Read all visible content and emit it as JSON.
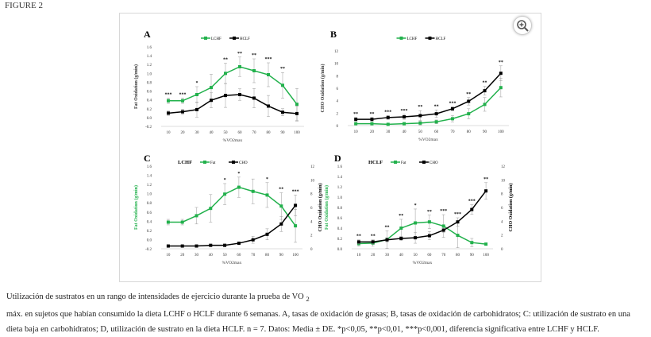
{
  "figure_label": "FIGURE 2",
  "zoom_icon": "zoom-in-icon",
  "caption_pre": "Utilización de sustratos en un rango de intensidades de ejercicio durante la prueba de VO ",
  "caption_sub": "2",
  "caption_post": " máx. en sujetos que habían consumido la dieta LCHF o HCLF durante 6 semanas. A, tasas de oxidación de grasas; B, tasas de oxidación de carbohidratos; C: utilización de sustrato en una dieta baja en carbohidratos; D, utilización de sustrato en la dieta HCLF. n = 7. Datos: Media ± DE. *p<0,05, **p<0,01, ***p<0,001, diferencia significativa entre LCHF y HCLF.",
  "colors": {
    "green": "#22b14c",
    "black": "#000000"
  },
  "chart_data": [
    {
      "panel": "A",
      "type": "line",
      "xlabel": "%VO2max",
      "ylabel": "Fat Oxidation (g/min)",
      "ylim": [
        -0.2,
        1.6
      ],
      "yticks": [
        "-0.2",
        "0.0",
        "0.2",
        "0.4",
        "0.6",
        "0.8",
        "1.0",
        "1.2",
        "1.4",
        "1.6"
      ],
      "categories": [
        "10",
        "20",
        "30",
        "40",
        "50",
        "60",
        "70",
        "80",
        "90",
        "100"
      ],
      "legend_title": "",
      "series": [
        {
          "name": "LCHF",
          "color": "#22b14c",
          "values": [
            0.38,
            0.38,
            0.52,
            0.68,
            1.0,
            1.15,
            1.06,
            0.97,
            0.73,
            0.3
          ],
          "sd": [
            0.06,
            0.06,
            0.18,
            0.3,
            0.23,
            0.22,
            0.27,
            0.27,
            0.29,
            0.36
          ]
        },
        {
          "name": "HCLF",
          "color": "#000000",
          "values": [
            0.1,
            0.13,
            0.18,
            0.39,
            0.5,
            0.52,
            0.44,
            0.26,
            0.12,
            0.09
          ],
          "sd": [
            0.05,
            0.06,
            0.17,
            0.17,
            0.27,
            0.13,
            0.22,
            0.24,
            0.08,
            0.17
          ]
        }
      ],
      "significance": [
        "***",
        "***",
        "*",
        "",
        "**",
        "**",
        "**",
        "***",
        "**",
        ""
      ]
    },
    {
      "panel": "B",
      "type": "line",
      "xlabel": "%VO2max",
      "ylabel": "CHO Oxidation (g/min)",
      "ylim": [
        0,
        12
      ],
      "yticks": [
        "0",
        "2",
        "4",
        "6",
        "8",
        "10",
        "12"
      ],
      "categories": [
        "10",
        "20",
        "30",
        "40",
        "50",
        "60",
        "70",
        "80",
        "90",
        "100"
      ],
      "legend_title": "",
      "series": [
        {
          "name": "LCHF",
          "color": "#22b14c",
          "values": [
            0.3,
            0.3,
            0.2,
            0.3,
            0.4,
            0.6,
            1.1,
            1.9,
            3.4,
            6.1
          ],
          "sd": [
            0.1,
            0.1,
            0.1,
            0.2,
            0.3,
            0.3,
            0.5,
            0.8,
            1.1,
            1.5
          ]
        },
        {
          "name": "HCLF",
          "color": "#000000",
          "values": [
            1.0,
            1.0,
            1.3,
            1.4,
            1.6,
            1.9,
            2.7,
            3.9,
            5.6,
            8.4
          ],
          "sd": [
            0.3,
            0.3,
            0.3,
            0.4,
            0.8,
            0.6,
            0.3,
            0.6,
            0.7,
            1.2
          ]
        }
      ],
      "significance": [
        "**",
        "**",
        "***",
        "***",
        "**",
        "**",
        "***",
        "**",
        "**",
        "**"
      ]
    },
    {
      "panel": "C",
      "type": "line",
      "xlabel": "%VO2max",
      "ylabel": "Fat Oxidation (g/min)",
      "ylabel_right": "CHO Oxidation (g/min)",
      "ylim": [
        -0.2,
        1.6
      ],
      "ylim_right": [
        0,
        12
      ],
      "yticks": [
        "-0.2",
        "0.0",
        "0.2",
        "0.4",
        "0.6",
        "0.8",
        "1.0",
        "1.2",
        "1.4",
        "1.6"
      ],
      "yticks_right": [
        "0",
        "2",
        "4",
        "6",
        "8",
        "10",
        "12"
      ],
      "categories": [
        "10",
        "20",
        "30",
        "40",
        "50",
        "60",
        "70",
        "80",
        "90",
        "100"
      ],
      "legend_title": "LCHF",
      "series": [
        {
          "name": "Fat",
          "axis": "left",
          "color": "#22b14c",
          "values": [
            0.38,
            0.38,
            0.52,
            0.68,
            0.99,
            1.14,
            1.05,
            0.97,
            0.73,
            0.3
          ],
          "sd": [
            0.06,
            0.06,
            0.18,
            0.3,
            0.23,
            0.22,
            0.27,
            0.27,
            0.29,
            0.36
          ]
        },
        {
          "name": "CHO",
          "axis": "right",
          "color": "#000000",
          "values": [
            0.4,
            0.4,
            0.4,
            0.5,
            0.5,
            0.8,
            1.3,
            2.1,
            3.6,
            6.3
          ],
          "sd": [
            0.1,
            0.1,
            0.1,
            0.1,
            0.2,
            0.2,
            0.5,
            0.8,
            1.1,
            1.5
          ]
        }
      ],
      "significance": [
        "",
        "",
        "",
        "",
        "*",
        "*",
        "",
        "*",
        "**",
        "***"
      ]
    },
    {
      "panel": "D",
      "type": "line",
      "xlabel": "%VO2max",
      "ylabel": "Fat Oxidation (g/min)",
      "ylabel_right": "CHO Oxidation (g/min)",
      "ylim": [
        0,
        1.6
      ],
      "ylim_right": [
        0,
        12
      ],
      "yticks": [
        "0.0",
        "0.2",
        "0.4",
        "0.6",
        "0.8",
        "1.0",
        "1.2",
        "1.4",
        "1.6"
      ],
      "yticks_right": [
        "0",
        "2",
        "4",
        "6",
        "8",
        "10",
        "12"
      ],
      "categories": [
        "10",
        "20",
        "30",
        "40",
        "50",
        "60",
        "70",
        "80",
        "90",
        "100"
      ],
      "legend_title": "HCLF",
      "series": [
        {
          "name": "Fat",
          "axis": "left",
          "color": "#22b14c",
          "values": [
            0.1,
            0.11,
            0.18,
            0.4,
            0.5,
            0.52,
            0.44,
            0.26,
            0.12,
            0.09
          ],
          "sd": [
            0.05,
            0.06,
            0.17,
            0.17,
            0.27,
            0.13,
            0.22,
            0.24,
            0.08,
            0.02
          ]
        },
        {
          "name": "CHO",
          "axis": "right",
          "color": "#000000",
          "values": [
            1.0,
            1.0,
            1.3,
            1.5,
            1.6,
            1.9,
            2.7,
            3.9,
            5.7,
            8.4
          ],
          "sd": [
            0.3,
            0.3,
            0.3,
            0.3,
            0.8,
            0.6,
            0.3,
            0.6,
            0.7,
            1.2
          ]
        }
      ],
      "significance": [
        "**",
        "**",
        "**",
        "**",
        "*",
        "**",
        "***",
        "***",
        "***",
        "**"
      ]
    }
  ]
}
